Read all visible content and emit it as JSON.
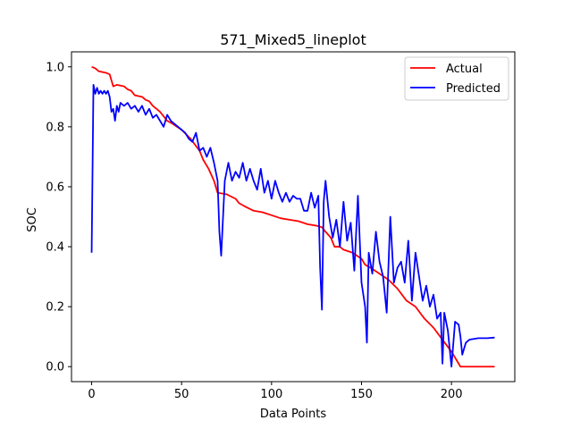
{
  "chart_data": {
    "type": "line",
    "title": "571_Mixed5_lineplot",
    "xlabel": "Data Points",
    "ylabel": "SOC",
    "xlim": [
      -11.2,
      235.2
    ],
    "ylim": [
      -0.05,
      1.05
    ],
    "xticks": [
      0,
      50,
      100,
      150,
      200
    ],
    "yticks": [
      0.0,
      0.2,
      0.4,
      0.6,
      0.8,
      1.0
    ],
    "xtick_labels": [
      "0",
      "50",
      "100",
      "150",
      "200"
    ],
    "ytick_labels": [
      "0.0",
      "0.2",
      "0.4",
      "0.6",
      "0.8",
      "1.0"
    ],
    "grid": false,
    "legend_position": "top-right",
    "series": [
      {
        "name": "Actual",
        "color": "#ff0000",
        "x": [
          0,
          2,
          4,
          8,
          10,
          12,
          14,
          18,
          20,
          22,
          24,
          28,
          30,
          32,
          34,
          36,
          38,
          40,
          42,
          45,
          50,
          55,
          60,
          62,
          65,
          68,
          70,
          75,
          80,
          82,
          85,
          90,
          95,
          100,
          105,
          110,
          115,
          120,
          125,
          128,
          130,
          133,
          135,
          138,
          140,
          145,
          150,
          152,
          155,
          160,
          165,
          170,
          175,
          180,
          185,
          190,
          195,
          200,
          203,
          205,
          210,
          215,
          220,
          224
        ],
        "y": [
          1.0,
          0.995,
          0.985,
          0.98,
          0.975,
          0.935,
          0.94,
          0.935,
          0.925,
          0.92,
          0.905,
          0.9,
          0.89,
          0.885,
          0.87,
          0.86,
          0.85,
          0.835,
          0.82,
          0.81,
          0.79,
          0.76,
          0.72,
          0.69,
          0.66,
          0.62,
          0.58,
          0.575,
          0.56,
          0.545,
          0.535,
          0.52,
          0.515,
          0.505,
          0.495,
          0.49,
          0.485,
          0.475,
          0.47,
          0.465,
          0.45,
          0.43,
          0.4,
          0.4,
          0.39,
          0.38,
          0.36,
          0.34,
          0.33,
          0.31,
          0.29,
          0.26,
          0.22,
          0.2,
          0.16,
          0.13,
          0.09,
          0.05,
          0.02,
          0.0,
          0.0,
          0.0,
          0.0,
          0.0
        ]
      },
      {
        "name": "Predicted",
        "color": "#0000ff",
        "x": [
          0,
          1,
          2,
          3,
          4,
          5,
          6,
          7,
          8,
          9,
          10,
          11,
          12,
          13,
          14,
          15,
          16,
          18,
          20,
          22,
          24,
          26,
          28,
          30,
          32,
          34,
          36,
          38,
          40,
          42,
          44,
          46,
          48,
          50,
          52,
          54,
          56,
          58,
          60,
          62,
          64,
          66,
          68,
          70,
          71,
          72,
          74,
          76,
          78,
          80,
          82,
          84,
          86,
          88,
          90,
          92,
          94,
          96,
          98,
          100,
          102,
          104,
          106,
          108,
          110,
          112,
          114,
          116,
          118,
          120,
          122,
          124,
          126,
          127,
          128,
          129,
          130,
          132,
          134,
          136,
          138,
          140,
          142,
          144,
          146,
          148,
          150,
          152,
          153,
          154,
          156,
          158,
          160,
          162,
          164,
          166,
          168,
          170,
          172,
          174,
          176,
          178,
          180,
          182,
          184,
          186,
          188,
          190,
          192,
          194,
          195,
          196,
          198,
          200,
          202,
          204,
          205,
          206,
          208,
          210,
          215,
          220,
          224
        ],
        "y": [
          0.38,
          0.94,
          0.91,
          0.93,
          0.91,
          0.92,
          0.91,
          0.92,
          0.91,
          0.92,
          0.9,
          0.85,
          0.86,
          0.82,
          0.87,
          0.85,
          0.88,
          0.87,
          0.88,
          0.86,
          0.87,
          0.85,
          0.87,
          0.84,
          0.86,
          0.83,
          0.84,
          0.82,
          0.8,
          0.84,
          0.82,
          0.81,
          0.8,
          0.79,
          0.78,
          0.76,
          0.75,
          0.78,
          0.72,
          0.73,
          0.7,
          0.73,
          0.68,
          0.62,
          0.45,
          0.37,
          0.62,
          0.68,
          0.62,
          0.65,
          0.63,
          0.68,
          0.62,
          0.66,
          0.62,
          0.59,
          0.66,
          0.58,
          0.62,
          0.56,
          0.62,
          0.58,
          0.55,
          0.58,
          0.55,
          0.57,
          0.56,
          0.56,
          0.52,
          0.52,
          0.58,
          0.53,
          0.57,
          0.33,
          0.19,
          0.55,
          0.62,
          0.5,
          0.43,
          0.49,
          0.4,
          0.55,
          0.42,
          0.48,
          0.32,
          0.57,
          0.28,
          0.2,
          0.08,
          0.38,
          0.31,
          0.45,
          0.35,
          0.3,
          0.18,
          0.5,
          0.28,
          0.33,
          0.35,
          0.28,
          0.42,
          0.22,
          0.38,
          0.3,
          0.22,
          0.27,
          0.2,
          0.24,
          0.16,
          0.18,
          0.01,
          0.18,
          0.12,
          0.0,
          0.15,
          0.14,
          0.1,
          0.04,
          0.08,
          0.09,
          0.095,
          0.095,
          0.097
        ]
      }
    ]
  }
}
